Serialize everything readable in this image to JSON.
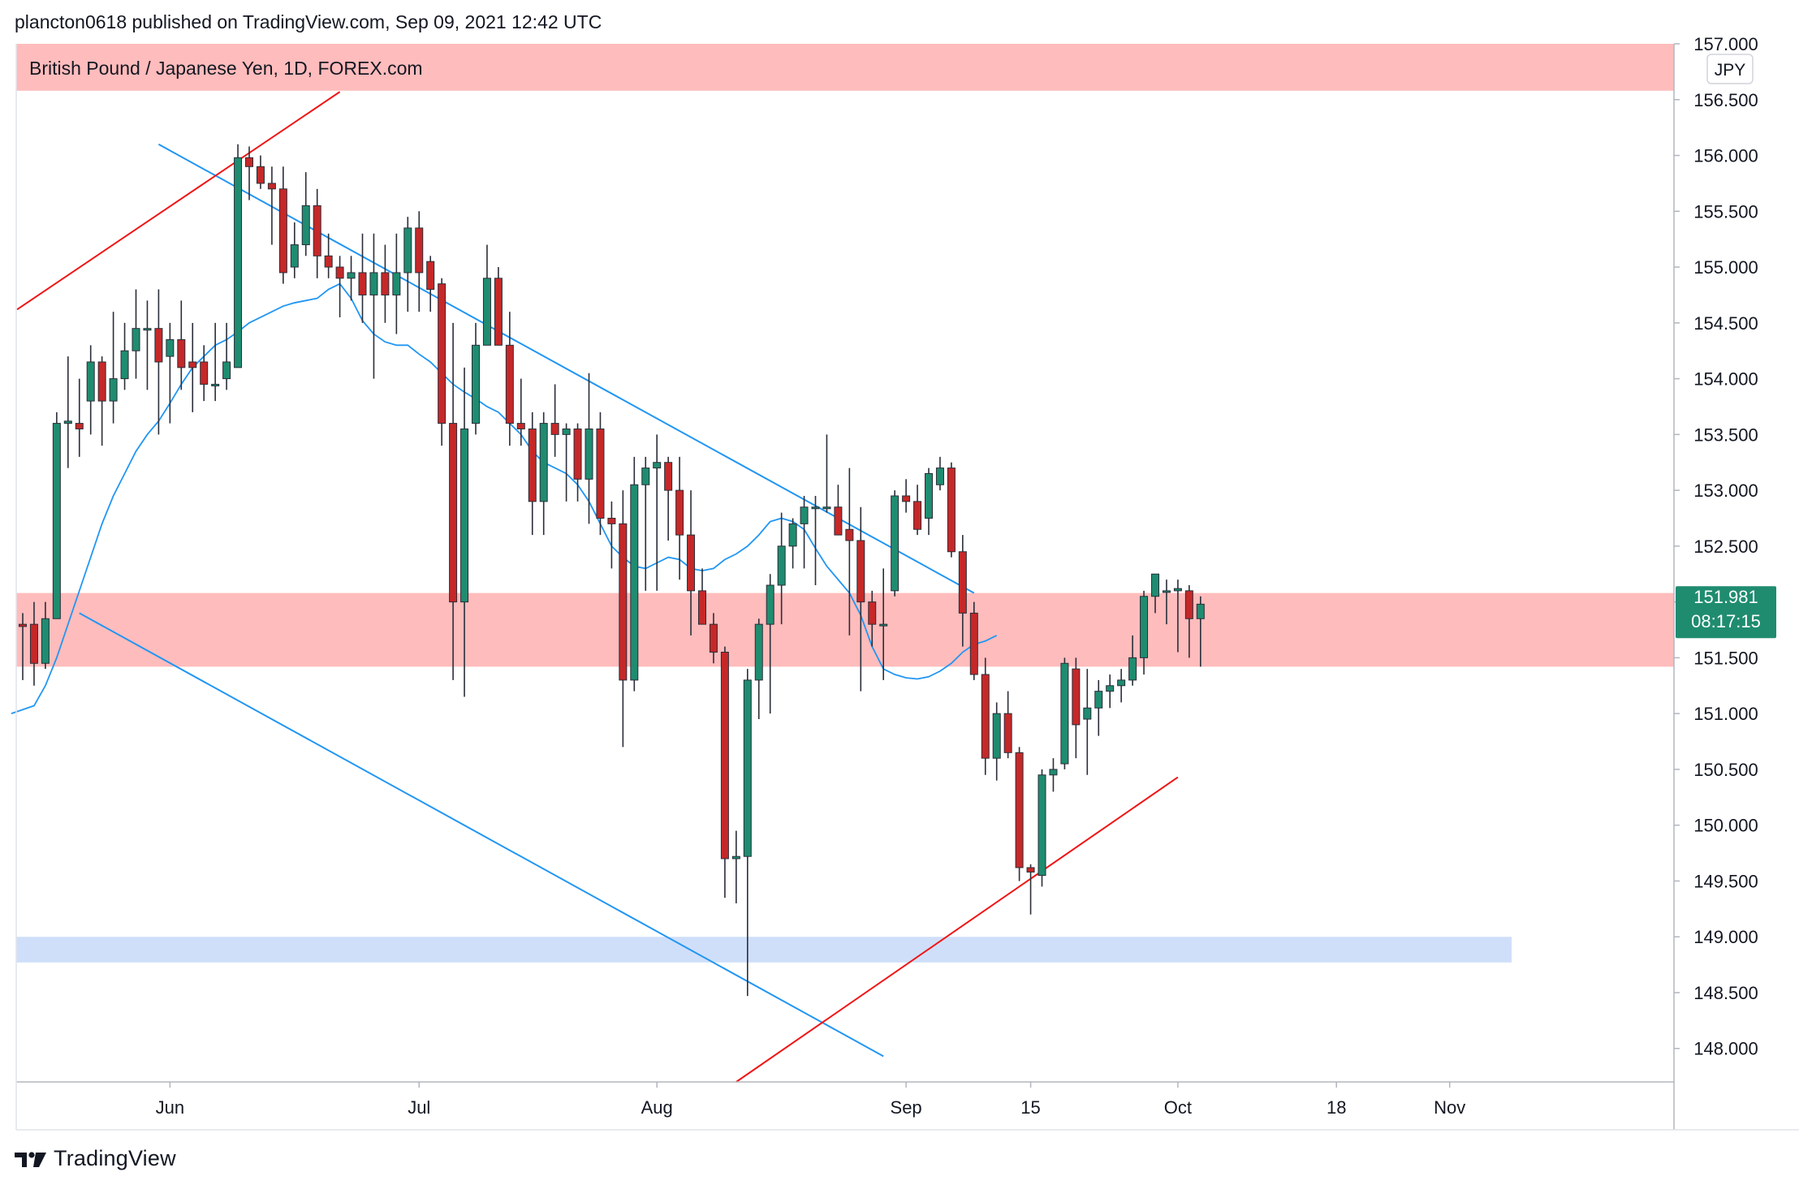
{
  "header": {
    "publish_line": "plancton0618 published on TradingView.com, Sep 09, 2021 12:42 UTC"
  },
  "footer": {
    "brand": "TradingView"
  },
  "chart_data": {
    "type": "candlestick",
    "title": "British Pound / Japanese Yen, 1D, FOREX.com",
    "currency": "JPY",
    "last_price": "151.981",
    "countdown": "08:17:15",
    "ylim": [
      147.7,
      157.0
    ],
    "price_ticks": [
      "157.000",
      "156.500",
      "156.000",
      "155.500",
      "155.000",
      "154.500",
      "154.000",
      "153.500",
      "153.000",
      "152.500",
      "152.000",
      "151.500",
      "151.000",
      "150.500",
      "150.000",
      "149.500",
      "149.000",
      "148.500",
      "148.000"
    ],
    "time_labels": [
      {
        "label": "Jun",
        "index": 13
      },
      {
        "label": "Jul",
        "index": 35
      },
      {
        "label": "Aug",
        "index": 56
      },
      {
        "label": "Sep",
        "index": 78
      },
      {
        "label": "15",
        "index": 89
      },
      {
        "label": "Oct",
        "index": 102
      },
      {
        "label": "18",
        "index": 116
      },
      {
        "label": "Nov",
        "index": 126
      }
    ],
    "zones": [
      {
        "name": "resistance-zone",
        "low": 156.58,
        "high": 157.0,
        "color": "#ffbcbc"
      },
      {
        "name": "pivot-zone",
        "low": 151.42,
        "high": 152.08,
        "color": "#ffbcbc"
      },
      {
        "name": "support-zone",
        "low": 148.77,
        "high": 149.0,
        "color": "#cfdffa"
      }
    ],
    "trendlines": [
      {
        "name": "upper-channel-line",
        "color": "#2196f3",
        "from": [
          12,
          156.1
        ],
        "to": [
          84,
          152.08
        ]
      },
      {
        "name": "lower-channel-line",
        "color": "#2196f3",
        "from": [
          5,
          151.9
        ],
        "to": [
          76,
          147.93
        ]
      },
      {
        "name": "red-rising-line-top",
        "color": "#f01414",
        "from": [
          -0.5,
          154.62
        ],
        "to": [
          28,
          156.57
        ]
      },
      {
        "name": "red-rising-line-bottom",
        "color": "#f01414",
        "from": [
          63,
          147.7
        ],
        "to": [
          102,
          150.43
        ]
      }
    ],
    "series": [
      {
        "name": "GBPJPY",
        "ohlc": [
          [
            151.8,
            151.9,
            151.3,
            151.78
          ],
          [
            151.8,
            152.0,
            151.25,
            151.45
          ],
          [
            151.45,
            152.0,
            151.4,
            151.85
          ],
          [
            151.85,
            153.7,
            151.85,
            153.6
          ],
          [
            153.6,
            154.2,
            153.2,
            153.62
          ],
          [
            153.6,
            154.0,
            153.3,
            153.55
          ],
          [
            153.8,
            154.3,
            153.5,
            154.15
          ],
          [
            154.15,
            154.2,
            153.4,
            153.8
          ],
          [
            153.8,
            154.6,
            153.6,
            154.0
          ],
          [
            154.0,
            154.5,
            153.9,
            154.25
          ],
          [
            154.25,
            154.8,
            154.0,
            154.45
          ],
          [
            154.45,
            154.7,
            153.9,
            154.45
          ],
          [
            154.45,
            154.8,
            153.5,
            154.15
          ],
          [
            154.2,
            154.5,
            153.6,
            154.35
          ],
          [
            154.35,
            154.7,
            153.9,
            154.1
          ],
          [
            154.15,
            154.5,
            153.7,
            154.1
          ],
          [
            154.15,
            154.3,
            153.8,
            153.95
          ],
          [
            153.95,
            154.5,
            153.8,
            153.95
          ],
          [
            154.0,
            154.5,
            153.9,
            154.15
          ],
          [
            154.1,
            156.1,
            154.1,
            155.98
          ],
          [
            155.98,
            156.08,
            155.6,
            155.9
          ],
          [
            155.9,
            156.0,
            155.7,
            155.75
          ],
          [
            155.75,
            155.9,
            155.2,
            155.7
          ],
          [
            155.7,
            155.9,
            154.85,
            154.95
          ],
          [
            155.0,
            155.4,
            154.9,
            155.2
          ],
          [
            155.2,
            155.85,
            155.1,
            155.55
          ],
          [
            155.55,
            155.7,
            154.9,
            155.1
          ],
          [
            155.1,
            155.3,
            154.9,
            155.0
          ],
          [
            155.0,
            155.1,
            154.55,
            154.9
          ],
          [
            154.9,
            155.1,
            154.7,
            154.95
          ],
          [
            154.95,
            155.3,
            154.5,
            154.75
          ],
          [
            154.75,
            155.3,
            154.0,
            154.95
          ],
          [
            154.95,
            155.2,
            154.5,
            154.75
          ],
          [
            154.75,
            155.3,
            154.4,
            154.95
          ],
          [
            154.95,
            155.45,
            154.6,
            155.35
          ],
          [
            155.35,
            155.5,
            154.6,
            154.95
          ],
          [
            155.05,
            155.1,
            154.6,
            154.8
          ],
          [
            154.85,
            154.9,
            153.4,
            153.6
          ],
          [
            153.6,
            154.5,
            151.3,
            152.0
          ],
          [
            152.0,
            154.1,
            151.15,
            153.55
          ],
          [
            153.6,
            154.5,
            153.5,
            154.3
          ],
          [
            154.3,
            155.2,
            154.3,
            154.9
          ],
          [
            154.9,
            155.0,
            154.3,
            154.3
          ],
          [
            154.3,
            154.6,
            153.4,
            153.6
          ],
          [
            153.6,
            154.0,
            153.4,
            153.55
          ],
          [
            153.55,
            153.7,
            152.6,
            152.9
          ],
          [
            152.9,
            153.7,
            152.6,
            153.6
          ],
          [
            153.6,
            153.95,
            153.3,
            153.5
          ],
          [
            153.5,
            153.6,
            152.9,
            153.55
          ],
          [
            153.55,
            153.6,
            152.9,
            153.1
          ],
          [
            153.1,
            154.05,
            152.7,
            153.55
          ],
          [
            153.55,
            153.7,
            152.6,
            152.75
          ],
          [
            152.75,
            152.9,
            152.3,
            152.7
          ],
          [
            152.7,
            153.0,
            150.7,
            151.3
          ],
          [
            151.3,
            153.3,
            151.2,
            153.05
          ],
          [
            153.05,
            153.3,
            152.1,
            153.2
          ],
          [
            153.2,
            153.5,
            152.1,
            153.25
          ],
          [
            153.25,
            153.3,
            152.55,
            153.0
          ],
          [
            153.0,
            153.3,
            152.2,
            152.6
          ],
          [
            152.6,
            153.0,
            151.7,
            152.1
          ],
          [
            152.1,
            152.3,
            151.8,
            151.8
          ],
          [
            151.8,
            151.9,
            151.45,
            151.55
          ],
          [
            151.55,
            151.6,
            149.35,
            149.7
          ],
          [
            149.7,
            149.95,
            149.3,
            149.72
          ],
          [
            149.72,
            151.4,
            148.47,
            151.3
          ],
          [
            151.3,
            151.85,
            150.95,
            151.8
          ],
          [
            151.8,
            152.25,
            151.0,
            152.15
          ],
          [
            152.15,
            152.8,
            151.8,
            152.5
          ],
          [
            152.5,
            152.75,
            152.3,
            152.7
          ],
          [
            152.7,
            152.95,
            152.3,
            152.85
          ],
          [
            152.85,
            152.95,
            152.15,
            152.85
          ],
          [
            152.85,
            153.5,
            152.8,
            152.85
          ],
          [
            152.85,
            153.05,
            152.6,
            152.6
          ],
          [
            152.65,
            153.2,
            151.7,
            152.55
          ],
          [
            152.55,
            152.85,
            151.2,
            152.0
          ],
          [
            152.0,
            152.1,
            151.6,
            151.8
          ],
          [
            151.8,
            152.3,
            151.3,
            151.8
          ],
          [
            152.1,
            153.0,
            152.05,
            152.95
          ],
          [
            152.95,
            153.1,
            152.8,
            152.9
          ],
          [
            152.9,
            153.05,
            152.6,
            152.65
          ],
          [
            152.75,
            153.2,
            152.6,
            153.15
          ],
          [
            153.05,
            153.3,
            153.0,
            153.2
          ],
          [
            153.2,
            153.25,
            152.4,
            152.45
          ],
          [
            152.45,
            152.6,
            151.6,
            151.9
          ],
          [
            151.9,
            152.0,
            151.3,
            151.35
          ],
          [
            151.35,
            151.5,
            150.45,
            150.6
          ],
          [
            150.6,
            151.1,
            150.4,
            151.0
          ],
          [
            151.0,
            151.2,
            150.6,
            150.65
          ],
          [
            150.65,
            150.7,
            149.5,
            149.62
          ],
          [
            149.62,
            149.65,
            149.2,
            149.58
          ],
          [
            149.55,
            150.5,
            149.45,
            150.45
          ],
          [
            150.45,
            150.6,
            150.3,
            150.5
          ],
          [
            150.55,
            151.5,
            150.5,
            151.45
          ],
          [
            151.4,
            151.5,
            150.6,
            150.9
          ],
          [
            150.95,
            151.4,
            150.45,
            151.05
          ],
          [
            151.05,
            151.3,
            150.8,
            151.2
          ],
          [
            151.2,
            151.35,
            151.05,
            151.25
          ],
          [
            151.25,
            151.4,
            151.1,
            151.3
          ],
          [
            151.3,
            151.7,
            151.25,
            151.5
          ],
          [
            151.5,
            152.1,
            151.35,
            152.05
          ],
          [
            152.05,
            152.25,
            151.9,
            152.25
          ],
          [
            152.1,
            152.2,
            151.8,
            152.1
          ],
          [
            152.1,
            152.2,
            151.55,
            152.12
          ],
          [
            152.1,
            152.15,
            151.5,
            151.85
          ],
          [
            151.85,
            152.05,
            151.42,
            151.98
          ]
        ]
      },
      {
        "name": "moving-average",
        "color": "#2196f3",
        "values": [
          151.0,
          151.07,
          151.25,
          151.5,
          151.8,
          152.1,
          152.4,
          152.7,
          152.95,
          153.15,
          153.35,
          153.5,
          153.62,
          153.78,
          153.95,
          154.1,
          154.2,
          154.3,
          154.35,
          154.42,
          154.5,
          154.55,
          154.6,
          154.65,
          154.68,
          154.7,
          154.72,
          154.8,
          154.85,
          154.72,
          154.52,
          154.4,
          154.33,
          154.3,
          154.3,
          154.22,
          154.15,
          154.05,
          153.95,
          153.88,
          153.82,
          153.75,
          153.7,
          153.6,
          153.5,
          153.35,
          153.25,
          153.2,
          153.15,
          153.05,
          152.9,
          152.7,
          152.5,
          152.4,
          152.32,
          152.3,
          152.35,
          152.4,
          152.38,
          152.3,
          152.28,
          152.3,
          152.38,
          152.43,
          152.5,
          152.6,
          152.72,
          152.75,
          152.72,
          152.65,
          152.48,
          152.32,
          152.2,
          152.08,
          151.88,
          151.6,
          151.4,
          151.35,
          151.32,
          151.31,
          151.33,
          151.38,
          151.45,
          151.55,
          151.62,
          151.65,
          151.7
        ]
      }
    ]
  }
}
